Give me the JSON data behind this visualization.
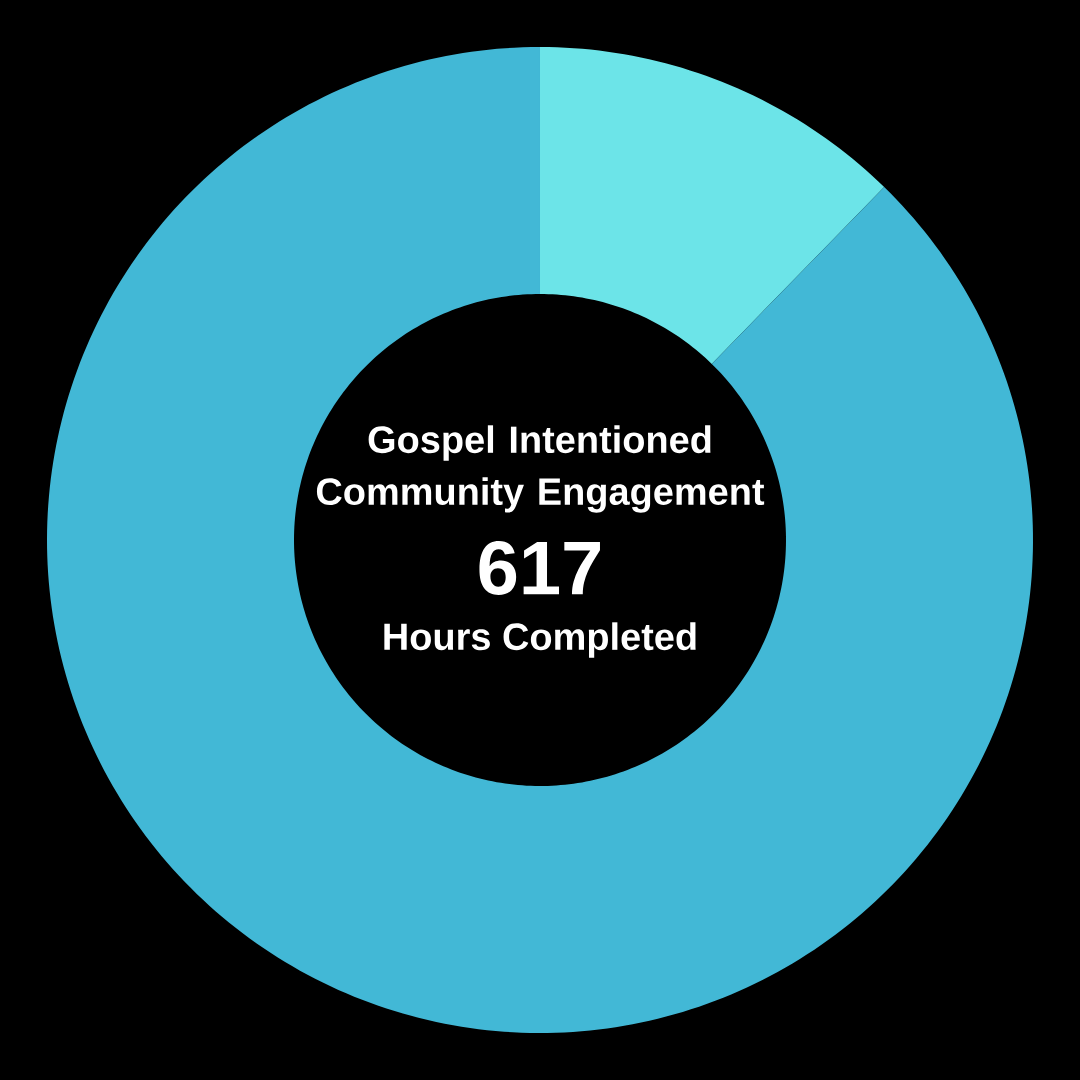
{
  "chart_data": {
    "type": "donut",
    "title": "Gospel Intentioned Community Engagement",
    "categories": [
      null,
      null
    ],
    "values": [
      12.3,
      87.7
    ],
    "colors": [
      "#6ce4e8",
      "#42b8d6"
    ],
    "annotations": [
      "617",
      "Hours Completed"
    ]
  }
}
